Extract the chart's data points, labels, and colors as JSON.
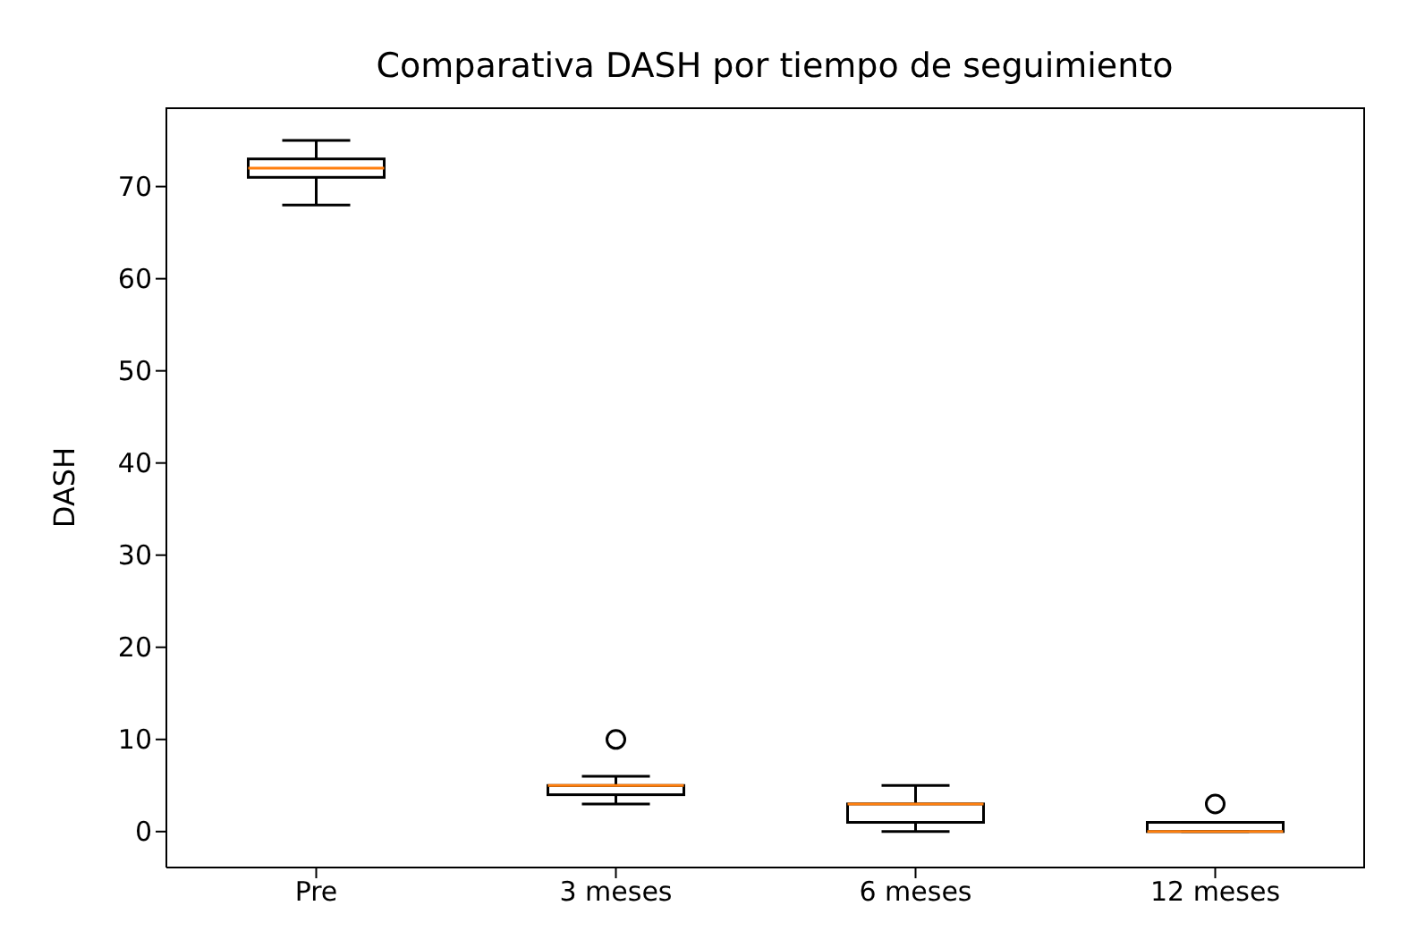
{
  "chart_data": {
    "type": "box",
    "title": "Comparativa DASH por tiempo de seguimiento",
    "ylabel": "DASH",
    "categories": [
      "Pre",
      "3 meses",
      "6 meses",
      "12 meses"
    ],
    "boxes": [
      {
        "low": 68,
        "q1": 71,
        "median": 72,
        "q3": 73,
        "high": 75
      },
      {
        "low": 3,
        "q1": 4,
        "median": 5,
        "q3": 5,
        "high": 6,
        "outliers": [
          10
        ]
      },
      {
        "low": 0,
        "q1": 1,
        "median": 3,
        "q3": 3,
        "high": 5
      },
      {
        "low": 0,
        "q1": 0,
        "median": 0,
        "q3": 1,
        "high": 1,
        "outliers": [
          3
        ]
      }
    ],
    "color": "#000000",
    "ylim": [
      -3.9,
      78.6
    ],
    "yticks": [
      0,
      10,
      20,
      30,
      40,
      50,
      60,
      70
    ]
  }
}
